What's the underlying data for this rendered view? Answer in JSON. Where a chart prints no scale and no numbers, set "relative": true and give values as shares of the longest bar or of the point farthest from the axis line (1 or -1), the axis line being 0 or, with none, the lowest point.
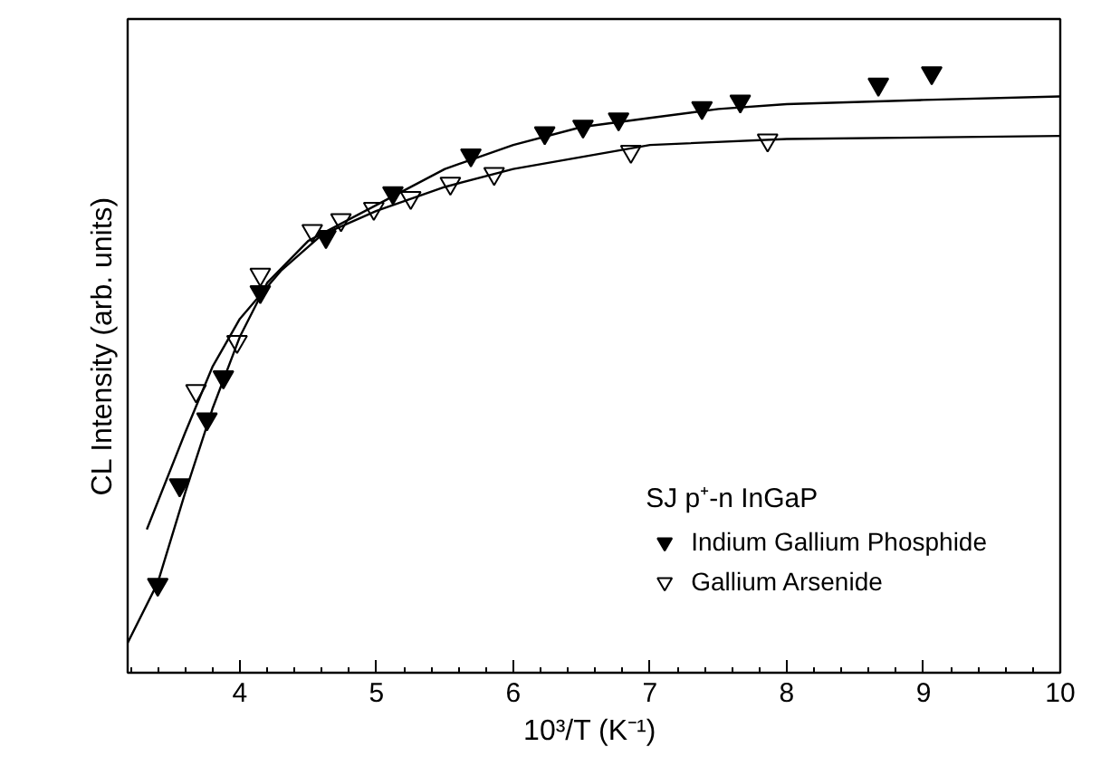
{
  "chart_data": {
    "type": "scatter",
    "xlabel": "10³/T  (K⁻¹)",
    "ylabel": "CL Intensity (arb. units)",
    "legend_title": "SJ p⁺-n InGaP",
    "relative": true,
    "xlim": [
      3.18,
      10
    ],
    "xticks": [
      4,
      5,
      6,
      7,
      8,
      9,
      10
    ],
    "grid": false,
    "legend": "bottom right",
    "series": [
      {
        "name": "Indium Gallium Phosphide",
        "color": "#000000",
        "marker": "triangle",
        "x": [
          3.4,
          3.56,
          3.76,
          3.88,
          4.15,
          4.63,
          5.12,
          5.69,
          6.23,
          6.51,
          6.77,
          7.38,
          7.66,
          8.67,
          9.06
        ],
        "values": [
          0.147,
          0.313,
          0.423,
          0.493,
          0.635,
          0.727,
          0.8,
          0.863,
          0.9,
          0.911,
          0.923,
          0.942,
          0.953,
          0.981,
          1.0
        ]
      },
      {
        "name": "Gallium Arsenide",
        "color": "#ffffff",
        "marker": "triangle",
        "x": [
          3.68,
          3.98,
          4.15,
          4.53,
          4.74,
          4.98,
          5.25,
          5.54,
          5.86,
          6.86,
          7.86
        ],
        "values": [
          0.47,
          0.552,
          0.664,
          0.737,
          0.755,
          0.774,
          0.792,
          0.816,
          0.832,
          0.869,
          0.888
        ]
      },
      {
        "type": "line",
        "color": "#000000",
        "x": [
          3.18,
          3.4,
          3.6,
          3.8,
          4.0,
          4.2,
          4.5,
          5.0,
          5.5,
          6.0,
          6.5,
          7.0,
          7.5,
          8.0,
          9.0,
          10.0
        ],
        "values": [
          0.05,
          0.15,
          0.3,
          0.44,
          0.56,
          0.65,
          0.72,
          0.78,
          0.84,
          0.88,
          0.91,
          0.925,
          0.94,
          0.948,
          0.955,
          0.961
        ]
      },
      {
        "type": "line",
        "color": "#000000",
        "x": [
          3.32,
          3.6,
          3.8,
          4.0,
          4.3,
          4.6,
          5.0,
          5.5,
          6.0,
          6.5,
          7.0,
          8.0,
          10.0
        ],
        "values": [
          0.239,
          0.4,
          0.51,
          0.59,
          0.67,
          0.73,
          0.77,
          0.81,
          0.84,
          0.86,
          0.88,
          0.89,
          0.895
        ]
      }
    ]
  }
}
